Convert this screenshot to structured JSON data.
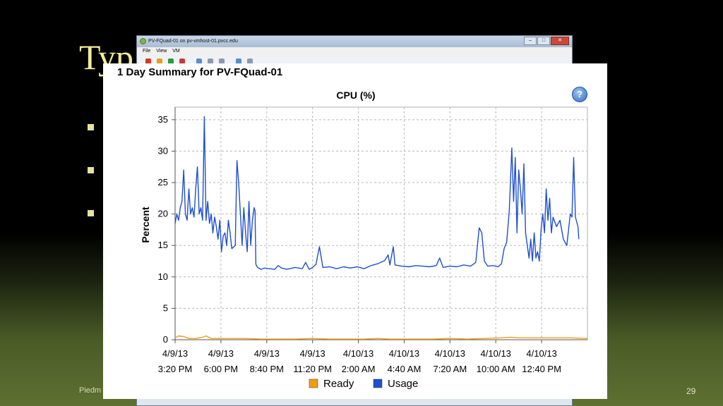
{
  "slide": {
    "title": "Typ",
    "footer_left": "Piedm",
    "page_number": "29"
  },
  "window": {
    "title": "PV-FQuad-01 on pv-vmhost-01.pvcc.edu",
    "menu": [
      "File",
      "View",
      "VM"
    ]
  },
  "panel": {
    "title": "1 Day Summary for PV-FQuad-01",
    "help_icon": "help-icon"
  },
  "chart_data": {
    "type": "line",
    "title": "CPU (%)",
    "ylabel": "Percent",
    "xlabel": "",
    "ylim": [
      0,
      37
    ],
    "yticks": [
      0,
      5,
      10,
      15,
      20,
      25,
      30,
      35
    ],
    "grid": true,
    "legend_position": "bottom",
    "xticks": [
      [
        "4/9/13",
        "3:20 PM"
      ],
      [
        "4/9/13",
        "6:00 PM"
      ],
      [
        "4/9/13",
        "8:40 PM"
      ],
      [
        "4/9/13",
        "11:20 PM"
      ],
      [
        "4/10/13",
        "2:00 AM"
      ],
      [
        "4/10/13",
        "4:40 AM"
      ],
      [
        "4/10/13",
        "7:20 AM"
      ],
      [
        "4/10/13",
        "10:00 AM"
      ],
      [
        "4/10/13",
        "12:40 PM"
      ]
    ],
    "x_hours_range": [
      0,
      24
    ],
    "series": [
      {
        "name": "Ready",
        "color": "#f39c12",
        "points": [
          [
            0,
            0.3
          ],
          [
            0.2,
            0.6
          ],
          [
            0.5,
            0.5
          ],
          [
            0.8,
            0.2
          ],
          [
            1.2,
            0.2
          ],
          [
            1.6,
            0.4
          ],
          [
            1.8,
            0.6
          ],
          [
            2.1,
            0.2
          ],
          [
            3,
            0.2
          ],
          [
            4,
            0.2
          ],
          [
            5,
            0.1
          ],
          [
            6,
            0.1
          ],
          [
            7,
            0.1
          ],
          [
            8,
            0.2
          ],
          [
            9,
            0.1
          ],
          [
            10,
            0.1
          ],
          [
            11,
            0.1
          ],
          [
            11.8,
            0.2
          ],
          [
            12.5,
            0.1
          ],
          [
            13,
            0.1
          ],
          [
            14,
            0.1
          ],
          [
            15,
            0.1
          ],
          [
            16,
            0.2
          ],
          [
            17,
            0.1
          ],
          [
            18,
            0.2
          ],
          [
            19,
            0.3
          ],
          [
            19.5,
            0.4
          ],
          [
            20,
            0.3
          ],
          [
            21,
            0.3
          ],
          [
            22,
            0.3
          ],
          [
            23,
            0.3
          ],
          [
            24,
            0.2
          ]
        ]
      },
      {
        "name": "Usage",
        "color": "#1f4fcf",
        "points": [
          [
            0,
            18.5
          ],
          [
            0.1,
            20
          ],
          [
            0.2,
            19
          ],
          [
            0.3,
            21
          ],
          [
            0.4,
            22
          ],
          [
            0.5,
            27
          ],
          [
            0.6,
            20
          ],
          [
            0.7,
            19
          ],
          [
            0.8,
            24
          ],
          [
            0.9,
            20
          ],
          [
            1.0,
            21
          ],
          [
            1.1,
            19.5
          ],
          [
            1.2,
            24
          ],
          [
            1.3,
            27.5
          ],
          [
            1.4,
            20
          ],
          [
            1.5,
            21
          ],
          [
            1.6,
            19
          ],
          [
            1.7,
            35.5
          ],
          [
            1.8,
            19
          ],
          [
            1.9,
            22
          ],
          [
            2.0,
            18.5
          ],
          [
            2.1,
            20
          ],
          [
            2.2,
            17
          ],
          [
            2.3,
            19.5
          ],
          [
            2.4,
            18
          ],
          [
            2.5,
            16
          ],
          [
            2.6,
            19
          ],
          [
            2.7,
            14
          ],
          [
            2.8,
            16.5
          ],
          [
            2.9,
            17
          ],
          [
            3.0,
            15
          ],
          [
            3.1,
            19
          ],
          [
            3.2,
            17
          ],
          [
            3.3,
            14.5
          ],
          [
            3.5,
            15
          ],
          [
            3.6,
            28.5
          ],
          [
            3.7,
            25
          ],
          [
            3.8,
            20
          ],
          [
            3.9,
            15
          ],
          [
            4.0,
            21
          ],
          [
            4.1,
            17
          ],
          [
            4.2,
            14
          ],
          [
            4.3,
            22
          ],
          [
            4.4,
            15
          ],
          [
            4.5,
            19
          ],
          [
            4.6,
            21
          ],
          [
            4.65,
            20.5
          ],
          [
            4.7,
            12
          ],
          [
            4.8,
            11.5
          ],
          [
            5.0,
            11.2
          ],
          [
            5.2,
            11.4
          ],
          [
            5.5,
            11.3
          ],
          [
            5.8,
            11.2
          ],
          [
            6.0,
            11.8
          ],
          [
            6.2,
            11.4
          ],
          [
            6.5,
            11.2
          ],
          [
            7.0,
            11.5
          ],
          [
            7.4,
            11.3
          ],
          [
            7.6,
            12.3
          ],
          [
            7.8,
            11.2
          ],
          [
            8.0,
            11.5
          ],
          [
            8.2,
            12
          ],
          [
            8.4,
            14.8
          ],
          [
            8.6,
            11.5
          ],
          [
            9.0,
            11.6
          ],
          [
            9.4,
            11.3
          ],
          [
            9.8,
            11.6
          ],
          [
            10.2,
            11.4
          ],
          [
            10.6,
            11.6
          ],
          [
            11.0,
            11.3
          ],
          [
            11.4,
            11.8
          ],
          [
            11.8,
            12.1
          ],
          [
            12.2,
            12.6
          ],
          [
            12.4,
            13.5
          ],
          [
            12.5,
            11.9
          ],
          [
            12.7,
            14.8
          ],
          [
            12.8,
            11.9
          ],
          [
            13.2,
            11.7
          ],
          [
            13.6,
            11.6
          ],
          [
            14.0,
            11.8
          ],
          [
            14.4,
            11.7
          ],
          [
            14.8,
            11.6
          ],
          [
            15.2,
            11.8
          ],
          [
            15.4,
            13
          ],
          [
            15.6,
            11.5
          ],
          [
            16.0,
            11.7
          ],
          [
            16.4,
            11.6
          ],
          [
            16.8,
            11.9
          ],
          [
            17.2,
            11.7
          ],
          [
            17.5,
            12.3
          ],
          [
            17.7,
            17.8
          ],
          [
            17.85,
            17
          ],
          [
            18.0,
            12.5
          ],
          [
            18.2,
            11.7
          ],
          [
            18.5,
            11.8
          ],
          [
            18.8,
            11.6
          ],
          [
            19.0,
            12.1
          ],
          [
            19.15,
            14.5
          ],
          [
            19.3,
            15.5
          ],
          [
            19.45,
            20.5
          ],
          [
            19.6,
            30.5
          ],
          [
            19.7,
            22
          ],
          [
            19.8,
            29
          ],
          [
            19.9,
            17
          ],
          [
            20.0,
            27
          ],
          [
            20.1,
            24
          ],
          [
            20.2,
            20
          ],
          [
            20.3,
            28
          ],
          [
            20.4,
            17
          ],
          [
            20.5,
            15
          ],
          [
            20.6,
            13
          ],
          [
            20.7,
            16
          ],
          [
            20.8,
            12.5
          ],
          [
            20.9,
            17
          ],
          [
            21.0,
            13
          ],
          [
            21.1,
            14
          ],
          [
            21.2,
            12.5
          ],
          [
            21.3,
            17.5
          ],
          [
            21.4,
            20
          ],
          [
            21.5,
            17
          ],
          [
            21.6,
            24
          ],
          [
            21.7,
            19
          ],
          [
            21.8,
            22.5
          ],
          [
            21.9,
            17
          ],
          [
            22.0,
            19.5
          ],
          [
            22.2,
            18
          ],
          [
            22.4,
            19
          ],
          [
            22.6,
            16
          ],
          [
            22.8,
            15
          ],
          [
            23.0,
            20
          ],
          [
            23.1,
            19.5
          ],
          [
            23.2,
            29
          ],
          [
            23.3,
            19.5
          ],
          [
            23.45,
            18
          ],
          [
            23.5,
            16
          ]
        ]
      }
    ]
  }
}
